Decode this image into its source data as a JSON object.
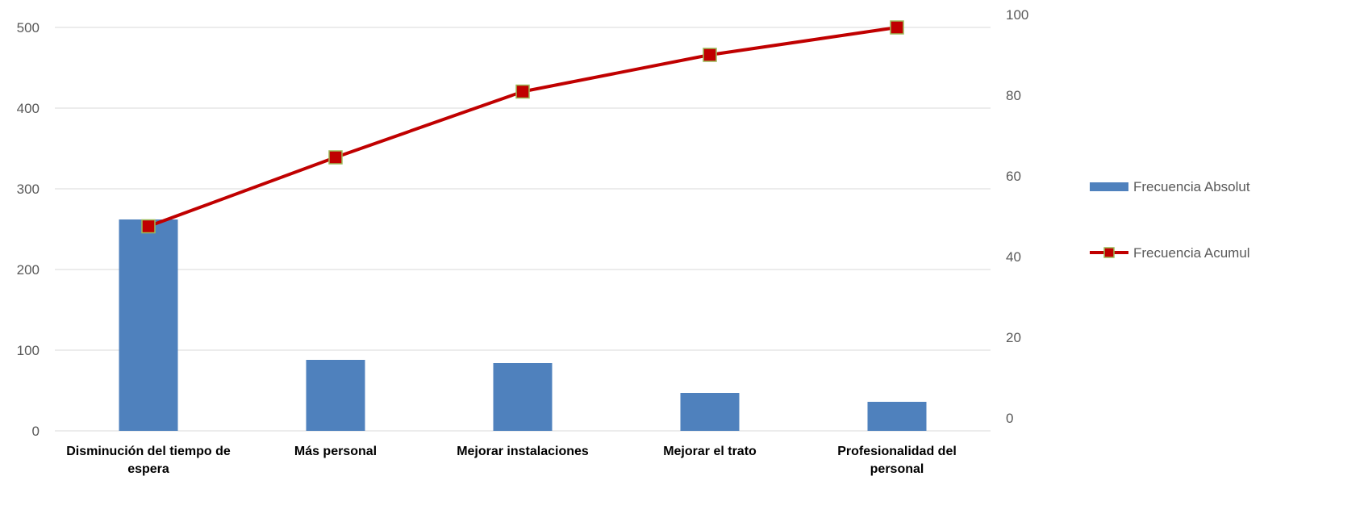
{
  "chart_data": {
    "type": "bar",
    "categories": [
      [
        "Disminución del tiempo de",
        "espera"
      ],
      [
        "Más personal"
      ],
      [
        "Mejorar instalaciones"
      ],
      [
        "Mejorar el trato"
      ],
      [
        "Profesionalidad del",
        "personal"
      ]
    ],
    "series": [
      {
        "name": "Frecuencia Absolut",
        "type": "bar",
        "axis": "left",
        "color": "#4F81BD",
        "values": [
          262,
          88,
          84,
          47,
          36
        ]
      },
      {
        "name": "Frecuencia Acumul",
        "type": "line",
        "axis": "right",
        "color": "#C00000",
        "marker_fill": "#C00000",
        "marker_edge": "#9BBB59",
        "values": [
          50.7,
          67.8,
          84.1,
          93.2,
          100
        ]
      }
    ],
    "y_left": {
      "min": 0,
      "max": 500,
      "ticks": [
        "0",
        "100",
        "200",
        "300",
        "400",
        "500"
      ]
    },
    "y_right": {
      "min": 0,
      "max": 100,
      "ticks": [
        "0",
        "20",
        "40",
        "60",
        "80",
        "100"
      ]
    },
    "grid": true,
    "legend_position": "right"
  }
}
